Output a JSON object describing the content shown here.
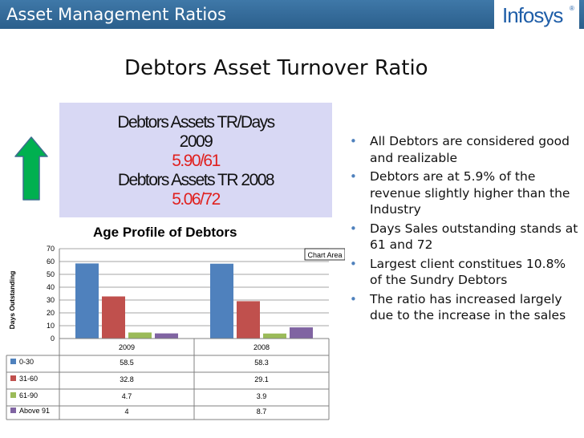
{
  "header": {
    "title": "Asset Management Ratios",
    "logo_text": "Infosys",
    "logo_mark": "®"
  },
  "slide_title": "Debtors Asset Turnover Ratio",
  "ratio_box": {
    "line1": "Debtors Assets TR/Days",
    "line2": "2009",
    "value_2009": "5.90/61",
    "line3": "Debtors Assets TR  2008",
    "value_2008": "5.06/72"
  },
  "arrow_icon": "green-up-arrow-icon",
  "bullets": [
    "All Debtors are considered good and realizable",
    "Debtors are at 5.9% of the revenue slightly higher than the Industry",
    "Days Sales outstanding stands at 61 and 72",
    "Largest client constitues 10.8% of the Sundry Debtors",
    "The ratio has increased largely due to the increase in the sales"
  ],
  "chart_area_label": "Chart Area",
  "chart_data": {
    "type": "bar",
    "title": "Age Profile of Debtors",
    "ylabel": "Days Outstanding",
    "xlabel": "",
    "ylim": [
      0,
      70
    ],
    "yticks": [
      0,
      10,
      20,
      30,
      40,
      50,
      60,
      70
    ],
    "categories": [
      "2009",
      "2008"
    ],
    "series": [
      {
        "name": "0-30",
        "values": [
          58.5,
          58.3
        ],
        "color": "#4f81bd"
      },
      {
        "name": "31-60",
        "values": [
          32.8,
          29.1
        ],
        "color": "#c0504d"
      },
      {
        "name": "61-90",
        "values": [
          4.7,
          3.9
        ],
        "color": "#9bbb59"
      },
      {
        "name": "Above 91",
        "values": [
          4,
          8.7
        ],
        "color": "#8064a2"
      }
    ],
    "data_table": true,
    "grid": true
  }
}
